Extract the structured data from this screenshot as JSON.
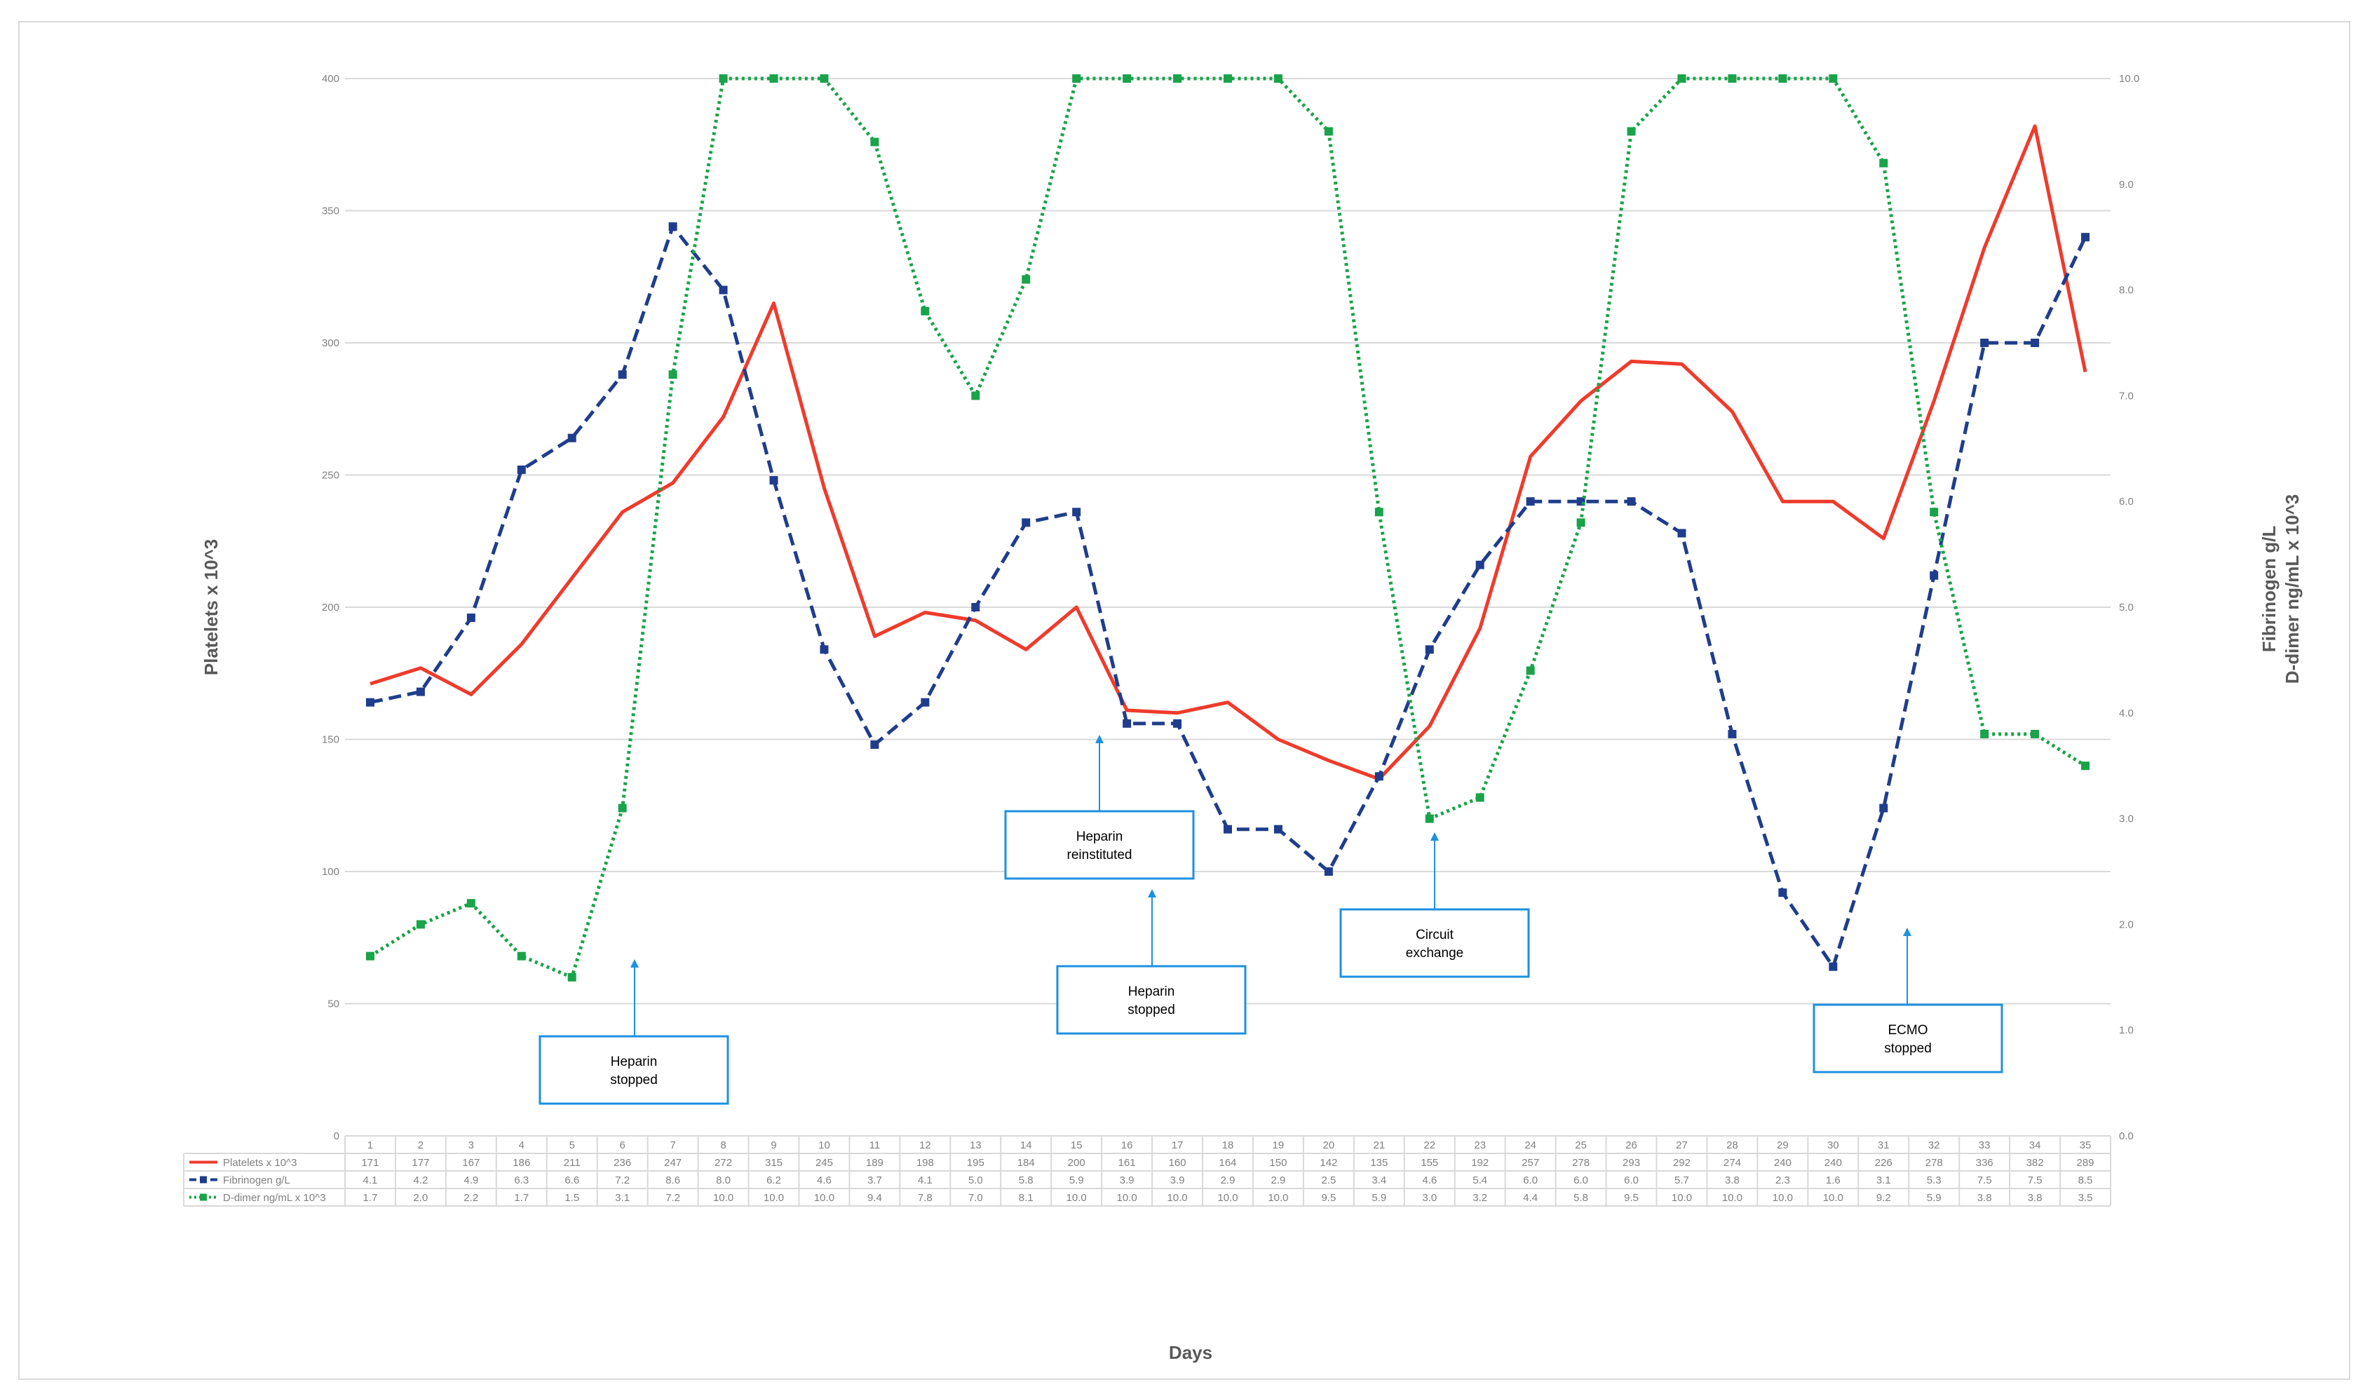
{
  "chart_data": {
    "type": "line",
    "xlabel": "Days",
    "ylabel_left": "Platelets x 10^3",
    "ylabel_right": [
      "Fibrinogen g/L",
      "D-dimer ng/mL x 10^3"
    ],
    "ylim_left": [
      0,
      400
    ],
    "ylim_right": [
      0,
      10
    ],
    "yticks_left": [
      "0",
      "50",
      "100",
      "150",
      "200",
      "250",
      "300",
      "350",
      "400"
    ],
    "yticks_right": [
      "0.0",
      "1.0",
      "2.0",
      "3.0",
      "4.0",
      "5.0",
      "6.0",
      "7.0",
      "8.0",
      "9.0",
      "10.0"
    ],
    "grid": true,
    "legend": "data-table",
    "categories": [
      "1",
      "2",
      "3",
      "4",
      "5",
      "6",
      "7",
      "8",
      "9",
      "10",
      "11",
      "12",
      "13",
      "14",
      "15",
      "16",
      "17",
      "18",
      "19",
      "20",
      "21",
      "22",
      "23",
      "24",
      "25",
      "26",
      "27",
      "28",
      "29",
      "30",
      "31",
      "32",
      "33",
      "34",
      "35"
    ],
    "series": [
      {
        "name": "Platelets x 10^3",
        "axis": "left",
        "style": "solid",
        "color": "#ef3b2c",
        "values": [
          171,
          177,
          167,
          186,
          211,
          236,
          247,
          272,
          315,
          245,
          189,
          198,
          195,
          184,
          200,
          161,
          160,
          164,
          150,
          142,
          135,
          155,
          192,
          257,
          278,
          293,
          292,
          274,
          240,
          240,
          226,
          278,
          336,
          382,
          289
        ],
        "labels": [
          "171",
          "177",
          "167",
          "186",
          "211",
          "236",
          "247",
          "272",
          "315",
          "245",
          "189",
          "198",
          "195",
          "184",
          "200",
          "161",
          "160",
          "164",
          "150",
          "142",
          "135",
          "155",
          "192",
          "257",
          "278",
          "293",
          "292",
          "274",
          "240",
          "240",
          "226",
          "278",
          "336",
          "382",
          "289"
        ]
      },
      {
        "name": "Fibrinogen g/L",
        "axis": "right",
        "style": "dashed",
        "color": "#1f3d8c",
        "values": [
          4.1,
          4.2,
          4.9,
          6.3,
          6.6,
          7.2,
          8.6,
          8.0,
          6.2,
          4.6,
          3.7,
          4.1,
          5.0,
          5.8,
          5.9,
          3.9,
          3.9,
          2.9,
          2.9,
          2.5,
          3.4,
          4.6,
          5.4,
          6.0,
          6.0,
          6.0,
          5.7,
          3.8,
          2.3,
          1.6,
          3.1,
          5.3,
          7.5,
          7.5,
          8.5
        ],
        "labels": [
          "4.1",
          "4.2",
          "4.9",
          "6.3",
          "6.6",
          "7.2",
          "8.6",
          "8.0",
          "6.2",
          "4.6",
          "3.7",
          "4.1",
          "5.0",
          "5.8",
          "5.9",
          "3.9",
          "3.9",
          "2.9",
          "2.9",
          "2.5",
          "3.4",
          "4.6",
          "5.4",
          "6.0",
          "6.0",
          "6.0",
          "5.7",
          "3.8",
          "2.3",
          "1.6",
          "3.1",
          "5.3",
          "7.5",
          "7.5",
          "8.5"
        ]
      },
      {
        "name": "D-dimer ng/mL x 10^3",
        "axis": "right",
        "style": "dotted",
        "color": "#1aa34a",
        "values": [
          1.7,
          2.0,
          2.2,
          1.7,
          1.5,
          3.1,
          7.2,
          10.0,
          10.0,
          10.0,
          9.4,
          7.8,
          7.0,
          8.1,
          10.0,
          10.0,
          10.0,
          10.0,
          10.0,
          9.5,
          5.9,
          3.0,
          3.2,
          4.4,
          5.8,
          9.5,
          10.0,
          10.0,
          10.0,
          10.0,
          9.2,
          5.9,
          3.8,
          3.8,
          3.5
        ],
        "labels": [
          "1.7",
          "2.0",
          "2.2",
          "1.7",
          "1.5",
          "3.1",
          "7.2",
          "10.0",
          "10.0",
          "10.0",
          "9.4",
          "7.8",
          "7.0",
          "8.1",
          "10.0",
          "10.0",
          "10.0",
          "10.0",
          "10.0",
          "9.5",
          "5.9",
          "3.0",
          "3.2",
          "4.4",
          "5.8",
          "9.5",
          "10.0",
          "10.0",
          "10.0",
          "10.0",
          "9.2",
          "5.9",
          "3.8",
          "3.8",
          "3.5"
        ]
      }
    ],
    "annotations": [
      {
        "text": [
          "Heparin",
          "stopped"
        ],
        "day": 6
      },
      {
        "text": [
          "Heparin",
          "reinstituted"
        ],
        "day": 15
      },
      {
        "text": [
          "Heparin",
          "stopped"
        ],
        "day": 16
      },
      {
        "text": [
          "Circuit",
          "exchange"
        ],
        "day": 22
      },
      {
        "text": [
          "ECMO",
          "stopped"
        ],
        "day": 32
      }
    ]
  }
}
